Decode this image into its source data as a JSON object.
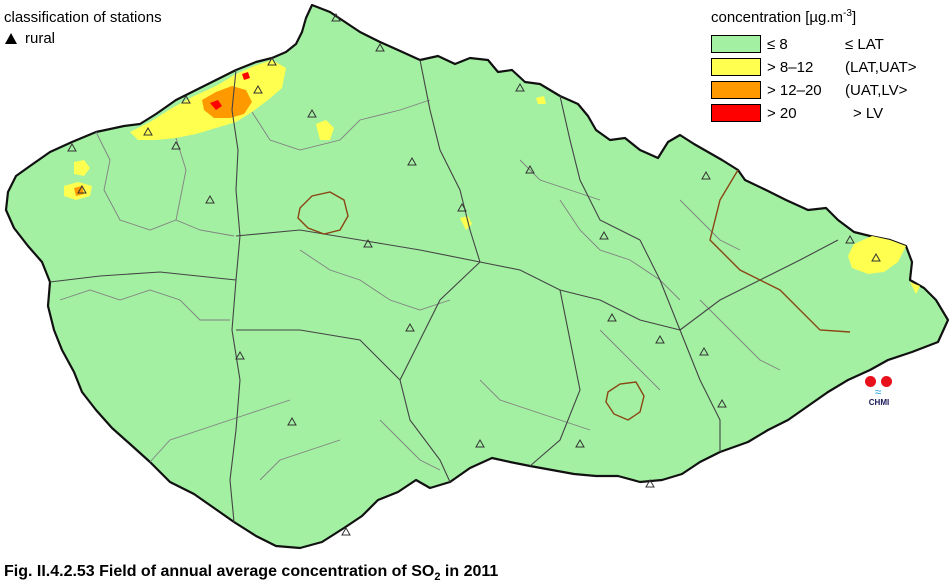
{
  "stations": {
    "title": "classification of stations",
    "rural_label": "rural",
    "rural_icon": "triangle-icon"
  },
  "legend": {
    "title_prefix": "concentration [µg.m",
    "title_exp": "-3",
    "title_suffix": "]",
    "items": [
      {
        "range": "≤ 8",
        "class": "≤ LAT",
        "color": "#a3f0a3"
      },
      {
        "range": "> 8–12",
        "class": "(LAT,UAT>",
        "color": "#ffff50"
      },
      {
        "range": "> 12–20",
        "class": "(UAT,LV>",
        "color": "#ff9900"
      },
      {
        "range": "> 20",
        "class": "> LV",
        "color": "#ff0000"
      }
    ]
  },
  "logo": {
    "text": "CHMI"
  },
  "caption": {
    "prefix": "Fig. II.4.2.53  Field of annual average concentration of SO",
    "sub": "2",
    "suffix": " in 2011"
  },
  "colors": {
    "border": "#111111",
    "district_lines": "#808080",
    "region_lines": "#444444",
    "city_outline": "#8b4513"
  }
}
